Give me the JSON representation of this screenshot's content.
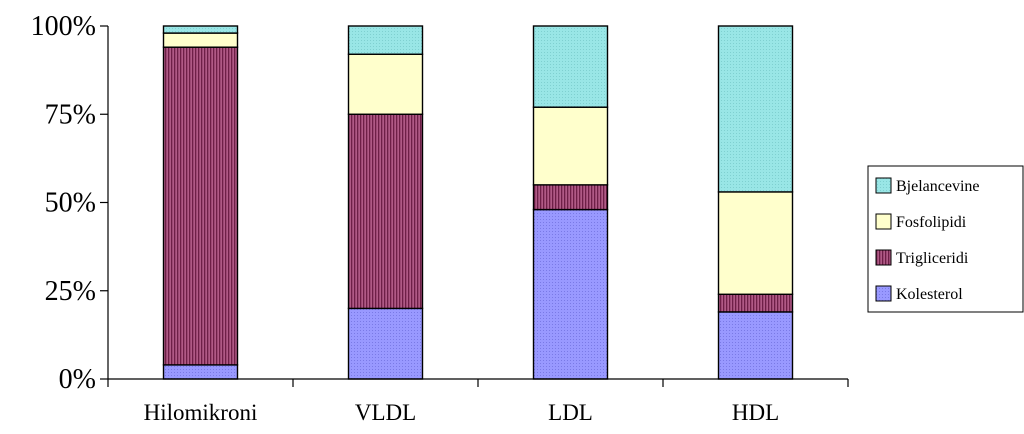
{
  "chart_data": {
    "type": "bar",
    "stacked": true,
    "normalized": true,
    "categories": [
      "Hilomikroni",
      "VLDL",
      "LDL",
      "HDL"
    ],
    "series": [
      {
        "name": "Kolesterol",
        "values": [
          4,
          20,
          48,
          19
        ],
        "color": "#9999ff",
        "pattern": "dots"
      },
      {
        "name": "Trigliceridi",
        "values": [
          90,
          55,
          7,
          5
        ],
        "color": "#993366",
        "pattern": "vertical-stripes"
      },
      {
        "name": "Fosfolipidi",
        "values": [
          4,
          17,
          22,
          29
        ],
        "color": "#ffffcc",
        "pattern": "solid"
      },
      {
        "name": "Bjelancevine",
        "values": [
          2,
          8,
          23,
          47
        ],
        "color": "#99e6e6",
        "pattern": "dots"
      }
    ],
    "yticks": [
      "0%",
      "25%",
      "50%",
      "75%",
      "100%"
    ],
    "ylim": [
      0,
      100
    ],
    "grid": false,
    "legend": {
      "placement": "right",
      "order": [
        "Bjelancevine",
        "Fosfolipidi",
        "Trigliceridi",
        "Kolesterol"
      ]
    }
  }
}
